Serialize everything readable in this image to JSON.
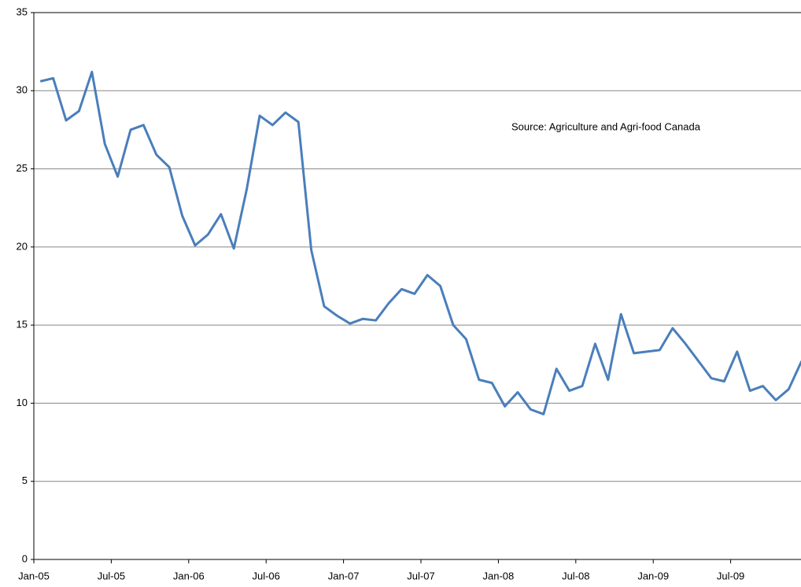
{
  "chart_data": {
    "type": "line",
    "annotation": "Source: Agriculture and Agri-food Canada",
    "categories": [
      "Jan-05",
      null,
      null,
      null,
      null,
      null,
      "Jul-05",
      null,
      null,
      null,
      null,
      null,
      "Jan-06",
      null,
      null,
      null,
      null,
      null,
      "Jul-06",
      null,
      null,
      null,
      null,
      null,
      "Jan-07",
      null,
      null,
      null,
      null,
      null,
      "Jul-07",
      null,
      null,
      null,
      null,
      null,
      "Jan-08",
      null,
      null,
      null,
      null,
      null,
      "Jul-08",
      null,
      null,
      null,
      null,
      null,
      "Jan-09",
      null,
      null,
      null,
      null,
      null,
      "Jul-09",
      null,
      null,
      null,
      null,
      null
    ],
    "values": [
      30.6,
      30.8,
      28.1,
      28.7,
      31.2,
      26.6,
      24.5,
      27.5,
      27.8,
      25.9,
      25.1,
      22.0,
      20.1,
      20.8,
      22.1,
      19.9,
      23.7,
      28.4,
      27.8,
      28.6,
      28.0,
      19.8,
      16.2,
      15.6,
      15.1,
      15.4,
      15.3,
      16.4,
      17.3,
      17.0,
      18.2,
      17.5,
      15.0,
      14.1,
      11.5,
      11.3,
      9.8,
      10.7,
      9.6,
      9.3,
      12.2,
      10.8,
      11.1,
      13.8,
      11.5,
      15.7,
      13.2,
      13.3,
      13.4,
      14.8,
      13.8,
      12.7,
      11.6,
      11.4,
      13.3,
      10.8,
      11.1,
      10.2,
      10.9,
      12.7
    ],
    "color": "#4a7ebb",
    "ylim": [
      0,
      35
    ],
    "yticks": [
      0,
      5,
      10,
      15,
      20,
      25,
      30,
      35
    ],
    "grid": true
  }
}
